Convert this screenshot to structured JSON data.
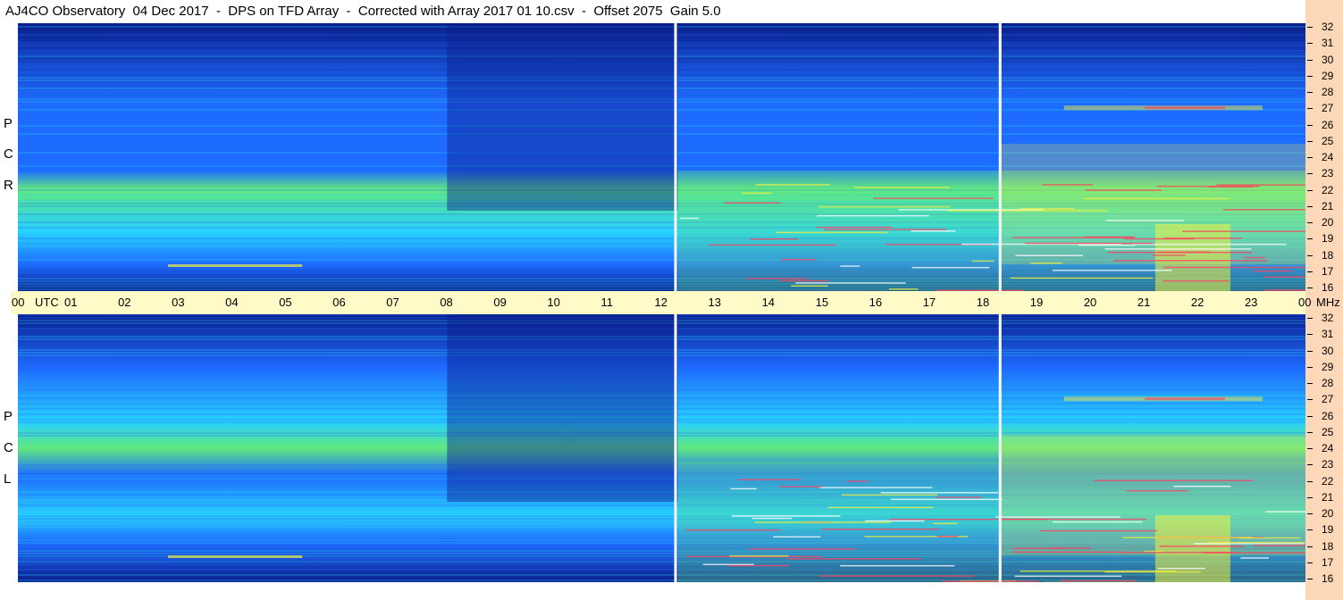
{
  "title": "AJ4CO Observatory  04 Dec 2017  -  DPS on TFD Array  -  Corrected with Array 2017 01 10.csv  -  Offset 2075  Gain 5.0",
  "polarizations": [
    {
      "letters": [
        "R",
        "C",
        "P"
      ]
    },
    {
      "letters": [
        "L",
        "C",
        "P"
      ]
    }
  ],
  "colors": {
    "background_band": "#fffbc8",
    "right_strip": "#fcd8b8",
    "low": "#0a1f8c",
    "mid": "#1e6bff",
    "high": "#27d0ff",
    "green": "#60e880",
    "yellow": "#f0f040",
    "hot": "#ff4060"
  },
  "chart_data": {
    "type": "heatmap",
    "subtype": "dynamic-spectrogram",
    "x_axis": {
      "label": "UTC",
      "ticks": [
        "00",
        "01",
        "02",
        "03",
        "04",
        "05",
        "06",
        "07",
        "08",
        "09",
        "10",
        "11",
        "12",
        "13",
        "14",
        "15",
        "16",
        "17",
        "18",
        "19",
        "20",
        "21",
        "22",
        "23",
        "00"
      ],
      "range_hours": [
        0,
        24
      ]
    },
    "y_axis": {
      "unit": "MHz",
      "ticks": [
        "32",
        "31",
        "30",
        "29",
        "28",
        "27",
        "26",
        "25",
        "24",
        "23",
        "22",
        "21",
        "20",
        "19",
        "18",
        "17",
        "16"
      ],
      "range_mhz": [
        16,
        32
      ]
    },
    "panels": [
      "RCP",
      "LCP"
    ],
    "markers_utc": [
      12.25,
      18.3
    ]
  }
}
